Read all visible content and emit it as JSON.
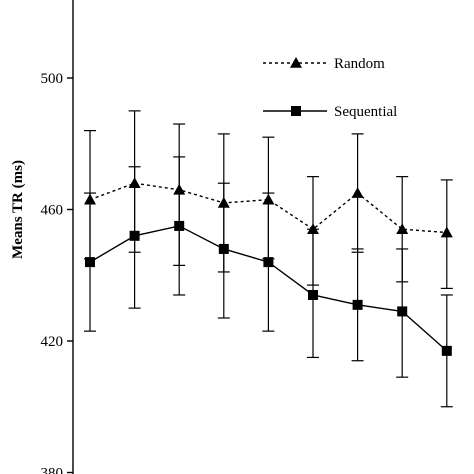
{
  "chart_data": {
    "type": "line",
    "ylabel": "Means TR (ms)",
    "ylim": [
      380,
      520
    ],
    "yticks": [
      380,
      420,
      460,
      500
    ],
    "x": [
      1,
      2,
      3,
      4,
      5,
      6,
      7,
      8,
      9
    ],
    "legend": "top-right",
    "series": [
      {
        "name": "Random",
        "style": "dotted",
        "marker": "triangle",
        "values": [
          463,
          468,
          466,
          462,
          463,
          454,
          465,
          454,
          453
        ],
        "error_low": [
          445,
          447,
          443,
          441,
          445,
          437,
          447,
          438,
          436
        ],
        "error_high": [
          484,
          490,
          486,
          483,
          482,
          470,
          483,
          470,
          469
        ]
      },
      {
        "name": "Sequential",
        "style": "solid",
        "marker": "square",
        "values": [
          444,
          452,
          455,
          448,
          444,
          434,
          431,
          429,
          417
        ],
        "error_low": [
          423,
          430,
          434,
          427,
          423,
          415,
          414,
          409,
          400
        ],
        "error_high": [
          465,
          473,
          476,
          468,
          465,
          454,
          448,
          448,
          434
        ]
      }
    ]
  }
}
